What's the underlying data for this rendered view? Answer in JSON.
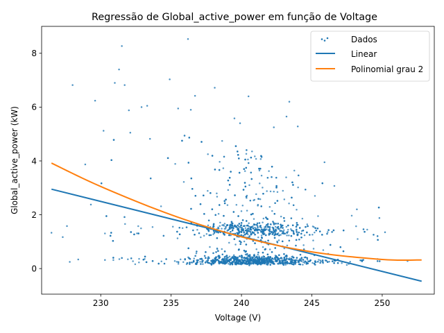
{
  "chart_data": {
    "type": "scatter",
    "title": "Regressão de Global_active_power em função de Voltage",
    "xlabel": "Voltage (V)",
    "ylabel": "Global_active_power (kW)",
    "xlim": [
      225.8,
      253.7
    ],
    "ylim": [
      -0.95,
      9.0
    ],
    "xticks": [
      230,
      235,
      240,
      245,
      250
    ],
    "yticks": [
      0,
      2,
      4,
      6,
      8
    ],
    "grid": false,
    "legend_position": "top-right",
    "series": [
      {
        "name": "Dados",
        "kind": "scatter",
        "color": "#1f77b4",
        "note_generated": "dense cloud reproduced by generator below plus listed outliers",
        "outliers": [
          [
            236.2,
            8.53
          ],
          [
            231.5,
            8.27
          ],
          [
            231.3,
            7.4
          ],
          [
            234.9,
            7.03
          ],
          [
            228.0,
            6.82
          ],
          [
            231.0,
            6.9
          ],
          [
            231.7,
            6.82
          ],
          [
            238.1,
            6.72
          ],
          [
            236.7,
            6.42
          ],
          [
            229.6,
            6.24
          ],
          [
            240.5,
            6.4
          ],
          [
            243.4,
            6.2
          ],
          [
            232.0,
            5.88
          ],
          [
            233.3,
            6.05
          ],
          [
            232.9,
            6.0
          ],
          [
            235.5,
            5.95
          ],
          [
            236.4,
            5.9
          ],
          [
            239.5,
            5.58
          ],
          [
            243.2,
            5.65
          ],
          [
            239.9,
            5.4
          ],
          [
            244.0,
            5.28
          ],
          [
            242.3,
            5.25
          ],
          [
            230.2,
            5.12
          ],
          [
            232.1,
            5.05
          ],
          [
            233.5,
            4.82
          ],
          [
            226.5,
            1.33
          ],
          [
            227.3,
            1.17
          ],
          [
            227.6,
            1.58
          ],
          [
            227.8,
            0.25
          ],
          [
            228.4,
            0.34
          ],
          [
            228.9,
            3.87
          ],
          [
            229.3,
            2.38
          ],
          [
            230.3,
            0.32
          ],
          [
            245.9,
            3.95
          ],
          [
            246.6,
            3.07
          ],
          [
            248.2,
            2.2
          ],
          [
            249.8,
            1.88
          ],
          [
            250.2,
            1.35
          ],
          [
            251.8,
            0.28
          ]
        ]
      },
      {
        "name": "Linear",
        "kind": "line",
        "color": "#1f77b4",
        "x": [
          226.5,
          252.8
        ],
        "y": [
          2.95,
          -0.47
        ]
      },
      {
        "name": "Polinomial grau 2",
        "kind": "line",
        "color": "#ff7f0e",
        "x": [
          226.5,
          230,
          235,
          240,
          245,
          250,
          252.8
        ],
        "y": [
          3.92,
          3.05,
          2.0,
          1.18,
          0.62,
          0.34,
          0.32
        ]
      }
    ]
  }
}
